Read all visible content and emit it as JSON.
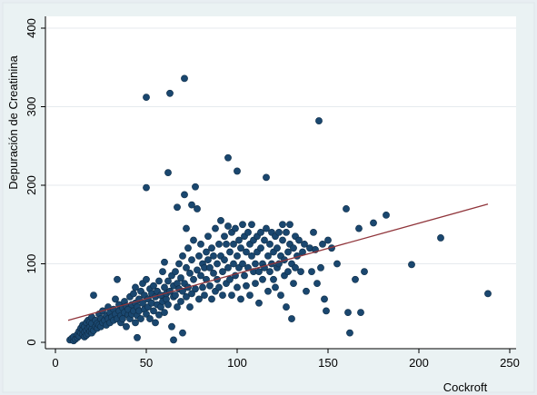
{
  "chart_data": {
    "type": "scatter",
    "title": "",
    "xlabel": "Cockroft",
    "ylabel": "Depuración de Creatinina",
    "xlim": [
      0,
      250
    ],
    "ylim": [
      0,
      400
    ],
    "x_ticks": [
      0,
      50,
      100,
      150,
      200,
      250
    ],
    "y_ticks": [
      0,
      100,
      200,
      300,
      400
    ],
    "grid": "horizontal",
    "colors": {
      "points": "#1a476f",
      "fit_line": "#90353b",
      "plot_bg": "#ffffff",
      "outer_bg": "#e8eef2",
      "grid": "#e6eaee"
    },
    "fit_line": {
      "x": [
        7,
        238
      ],
      "y": [
        28,
        176
      ]
    },
    "points": [
      [
        8,
        3
      ],
      [
        9,
        5
      ],
      [
        10,
        2
      ],
      [
        10,
        7
      ],
      [
        11,
        4
      ],
      [
        12,
        6
      ],
      [
        12,
        10
      ],
      [
        13,
        8
      ],
      [
        13,
        14
      ],
      [
        14,
        12
      ],
      [
        14,
        18
      ],
      [
        15,
        10
      ],
      [
        15,
        16
      ],
      [
        15,
        22
      ],
      [
        16,
        7
      ],
      [
        16,
        13
      ],
      [
        16,
        20
      ],
      [
        17,
        9
      ],
      [
        17,
        15
      ],
      [
        17,
        25
      ],
      [
        18,
        11
      ],
      [
        18,
        18
      ],
      [
        18,
        28
      ],
      [
        19,
        14
      ],
      [
        19,
        20
      ],
      [
        19,
        26
      ],
      [
        20,
        12
      ],
      [
        20,
        17
      ],
      [
        20,
        24
      ],
      [
        20,
        32
      ],
      [
        21,
        15
      ],
      [
        21,
        60
      ],
      [
        22,
        20
      ],
      [
        22,
        28
      ],
      [
        23,
        18
      ],
      [
        23,
        24
      ],
      [
        24,
        22
      ],
      [
        24,
        36
      ],
      [
        25,
        20
      ],
      [
        25,
        30
      ],
      [
        26,
        25
      ],
      [
        26,
        40
      ],
      [
        27,
        28
      ],
      [
        28,
        22
      ],
      [
        28,
        34
      ],
      [
        29,
        30
      ],
      [
        29,
        45
      ],
      [
        30,
        25
      ],
      [
        30,
        38
      ],
      [
        31,
        32
      ],
      [
        32,
        28
      ],
      [
        32,
        42
      ],
      [
        33,
        36
      ],
      [
        33,
        55
      ],
      [
        34,
        30
      ],
      [
        34,
        80
      ],
      [
        35,
        40
      ],
      [
        35,
        48
      ],
      [
        36,
        34
      ],
      [
        36,
        25
      ],
      [
        37,
        44
      ],
      [
        37,
        30
      ],
      [
        38,
        38
      ],
      [
        38,
        52
      ],
      [
        39,
        20
      ],
      [
        39,
        46
      ],
      [
        40,
        35
      ],
      [
        40,
        42
      ],
      [
        41,
        30
      ],
      [
        41,
        58
      ],
      [
        42,
        48
      ],
      [
        42,
        36
      ],
      [
        43,
        40
      ],
      [
        43,
        62
      ],
      [
        44,
        25
      ],
      [
        44,
        50
      ],
      [
        44,
        70
      ],
      [
        45,
        34
      ],
      [
        45,
        45
      ],
      [
        45,
        6
      ],
      [
        46,
        55
      ],
      [
        46,
        40
      ],
      [
        47,
        65
      ],
      [
        47,
        30
      ],
      [
        48,
        50
      ],
      [
        48,
        75
      ],
      [
        49,
        42
      ],
      [
        49,
        60
      ],
      [
        50,
        36
      ],
      [
        50,
        80
      ],
      [
        50,
        312
      ],
      [
        50,
        197
      ],
      [
        51,
        55
      ],
      [
        51,
        45
      ],
      [
        52,
        68
      ],
      [
        52,
        30
      ],
      [
        53,
        50
      ],
      [
        53,
        62
      ],
      [
        54,
        40
      ],
      [
        54,
        72
      ],
      [
        55,
        58
      ],
      [
        55,
        25
      ],
      [
        56,
        65
      ],
      [
        56,
        48
      ],
      [
        57,
        35
      ],
      [
        57,
        78
      ],
      [
        58,
        60
      ],
      [
        58,
        45
      ],
      [
        59,
        52
      ],
      [
        59,
        90
      ],
      [
        60,
        70
      ],
      [
        60,
        38
      ],
      [
        60,
        102
      ],
      [
        61,
        55
      ],
      [
        61,
        62
      ],
      [
        62,
        48
      ],
      [
        62,
        78
      ],
      [
        62,
        216
      ],
      [
        63,
        317
      ],
      [
        63,
        65
      ],
      [
        64,
        20
      ],
      [
        64,
        85
      ],
      [
        65,
        58
      ],
      [
        65,
        3
      ],
      [
        65,
        72
      ],
      [
        66,
        60
      ],
      [
        66,
        90
      ],
      [
        67,
        45
      ],
      [
        67,
        75
      ],
      [
        67,
        172
      ],
      [
        68,
        68
      ],
      [
        68,
        100
      ],
      [
        69,
        52
      ],
      [
        69,
        82
      ],
      [
        70,
        65
      ],
      [
        70,
        110
      ],
      [
        70,
        12
      ],
      [
        71,
        336
      ],
      [
        71,
        75
      ],
      [
        71,
        188
      ],
      [
        72,
        58
      ],
      [
        72,
        95
      ],
      [
        72,
        145
      ],
      [
        73,
        70
      ],
      [
        73,
        120
      ],
      [
        74,
        88
      ],
      [
        74,
        45
      ],
      [
        75,
        62
      ],
      [
        75,
        105
      ],
      [
        75,
        175
      ],
      [
        76,
        80
      ],
      [
        76,
        130
      ],
      [
        77,
        68
      ],
      [
        77,
        198
      ],
      [
        78,
        92
      ],
      [
        78,
        170
      ],
      [
        79,
        55
      ],
      [
        79,
        110
      ],
      [
        80,
        85
      ],
      [
        80,
        125
      ],
      [
        81,
        70
      ],
      [
        81,
        100
      ],
      [
        82,
        95
      ],
      [
        82,
        60
      ],
      [
        83,
        115
      ],
      [
        83,
        80
      ],
      [
        84,
        105
      ],
      [
        84,
        135
      ],
      [
        85,
        72
      ],
      [
        85,
        95
      ],
      [
        86,
        120
      ],
      [
        86,
        55
      ],
      [
        87,
        88
      ],
      [
        87,
        110
      ],
      [
        88,
        65
      ],
      [
        88,
        145
      ],
      [
        89,
        100
      ],
      [
        89,
        80
      ],
      [
        90,
        125
      ],
      [
        90,
        70
      ],
      [
        91,
        110
      ],
      [
        91,
        155
      ],
      [
        92,
        90
      ],
      [
        92,
        60
      ],
      [
        93,
        135
      ],
      [
        93,
        105
      ],
      [
        94,
        75
      ],
      [
        94,
        125
      ],
      [
        95,
        95
      ],
      [
        95,
        148
      ],
      [
        95,
        235
      ],
      [
        96,
        115
      ],
      [
        96,
        80
      ],
      [
        97,
        140
      ],
      [
        97,
        60
      ],
      [
        98,
        100
      ],
      [
        98,
        125
      ],
      [
        99,
        85
      ],
      [
        99,
        145
      ],
      [
        100,
        110
      ],
      [
        100,
        70
      ],
      [
        100,
        218
      ],
      [
        101,
        130
      ],
      [
        101,
        95
      ],
      [
        102,
        120
      ],
      [
        102,
        55
      ],
      [
        103,
        150
      ],
      [
        103,
        100
      ],
      [
        104,
        85
      ],
      [
        104,
        135
      ],
      [
        105,
        115
      ],
      [
        105,
        72
      ],
      [
        106,
        140
      ],
      [
        106,
        95
      ],
      [
        107,
        125
      ],
      [
        107,
        60
      ],
      [
        108,
        110
      ],
      [
        108,
        150
      ],
      [
        109,
        90
      ],
      [
        109,
        130
      ],
      [
        110,
        100
      ],
      [
        110,
        75
      ],
      [
        111,
        135
      ],
      [
        111,
        115
      ],
      [
        112,
        90
      ],
      [
        112,
        50
      ],
      [
        113,
        120
      ],
      [
        113,
        140
      ],
      [
        114,
        100
      ],
      [
        114,
        80
      ],
      [
        115,
        130
      ],
      [
        115,
        95
      ],
      [
        116,
        145
      ],
      [
        116,
        210
      ],
      [
        117,
        110
      ],
      [
        117,
        65
      ],
      [
        118,
        125
      ],
      [
        118,
        90
      ],
      [
        119,
        100
      ],
      [
        119,
        140
      ],
      [
        120,
        80
      ],
      [
        120,
        115
      ],
      [
        121,
        135
      ],
      [
        121,
        70
      ],
      [
        122,
        95
      ],
      [
        122,
        120
      ],
      [
        123,
        140
      ],
      [
        123,
        100
      ],
      [
        124,
        110
      ],
      [
        124,
        60
      ],
      [
        125,
        130
      ],
      [
        125,
        150
      ],
      [
        126,
        85
      ],
      [
        126,
        105
      ],
      [
        127,
        140
      ],
      [
        127,
        45
      ],
      [
        128,
        115
      ],
      [
        128,
        90
      ],
      [
        129,
        150
      ],
      [
        129,
        125
      ],
      [
        130,
        100
      ],
      [
        130,
        30
      ],
      [
        131,
        120
      ],
      [
        131,
        75
      ],
      [
        132,
        135
      ],
      [
        132,
        95
      ],
      [
        133,
        110
      ],
      [
        134,
        130
      ],
      [
        135,
        90
      ],
      [
        136,
        115
      ],
      [
        137,
        125
      ],
      [
        138,
        65
      ],
      [
        140,
        120
      ],
      [
        141,
        90
      ],
      [
        142,
        140
      ],
      [
        143,
        118
      ],
      [
        144,
        75
      ],
      [
        145,
        282
      ],
      [
        146,
        95
      ],
      [
        147,
        125
      ],
      [
        148,
        55
      ],
      [
        149,
        40
      ],
      [
        150,
        130
      ],
      [
        152,
        120
      ],
      [
        155,
        100
      ],
      [
        160,
        170
      ],
      [
        161,
        38
      ],
      [
        162,
        12
      ],
      [
        165,
        80
      ],
      [
        167,
        145
      ],
      [
        168,
        38
      ],
      [
        170,
        90
      ],
      [
        175,
        152
      ],
      [
        182,
        162
      ],
      [
        196,
        99
      ],
      [
        212,
        133
      ],
      [
        238,
        62
      ]
    ]
  }
}
